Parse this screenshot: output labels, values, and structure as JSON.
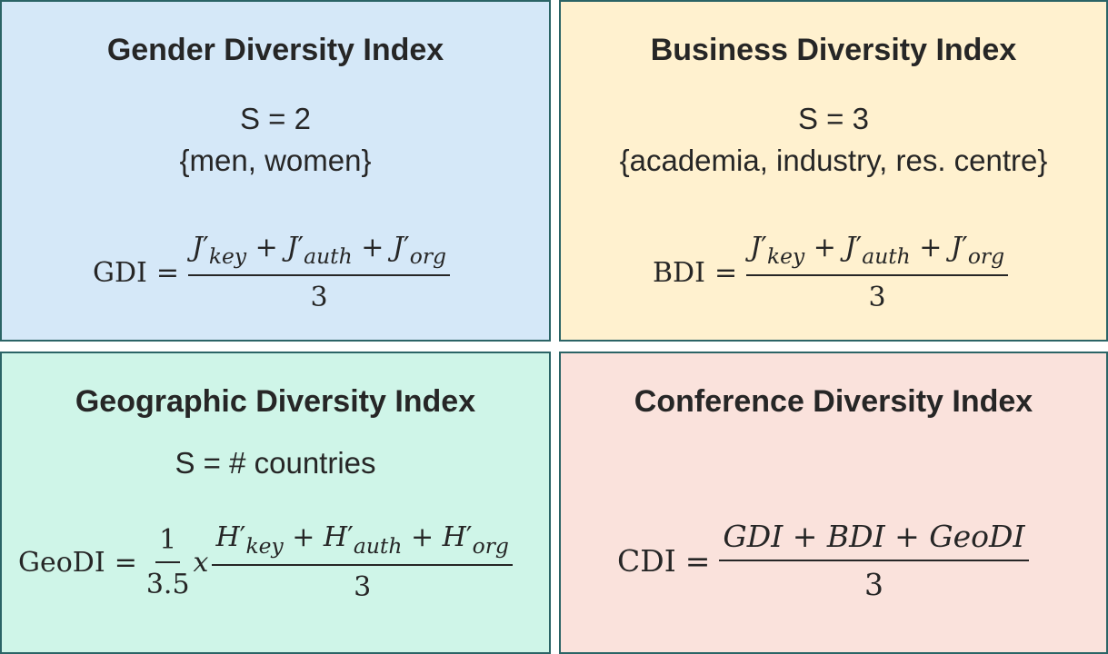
{
  "gdi": {
    "title": "Gender Diversity Index",
    "s_line": "S = 2",
    "categories": "{men, women}",
    "formula": {
      "lhs": "GDI",
      "num_a": "J",
      "sub_a": "key",
      "num_b": "J",
      "sub_b": "auth",
      "num_c": "J",
      "sub_c": "org",
      "den": "3"
    }
  },
  "bdi": {
    "title": "Business Diversity Index",
    "s_line": "S = 3",
    "categories": "{academia, industry, res. centre}",
    "formula": {
      "lhs": "BDI",
      "num_a": "J",
      "sub_a": "key",
      "num_b": "J",
      "sub_b": "auth",
      "num_c": "J",
      "sub_c": "org",
      "den": "3"
    }
  },
  "geodi": {
    "title": "Geographic Diversity Index",
    "s_line": "S = # countries",
    "formula": {
      "lhs": "GeoDI",
      "coef_num": "1",
      "coef_den": "3.5",
      "times": "x",
      "num_a": "H",
      "sub_a": "key",
      "num_b": "H",
      "sub_b": "auth",
      "num_c": "H",
      "sub_c": "org",
      "den": "3"
    }
  },
  "cdi": {
    "title": "Conference Diversity Index",
    "formula": {
      "lhs": "CDI",
      "num": "GDI + BDI + GeoDI",
      "den": "3"
    }
  },
  "colors": {
    "border": "#2b6466",
    "gdi_bg": "#d5e8f8",
    "bdi_bg": "#fff1cf",
    "geodi_bg": "#cff5e8",
    "cdi_bg": "#fae2dc"
  }
}
